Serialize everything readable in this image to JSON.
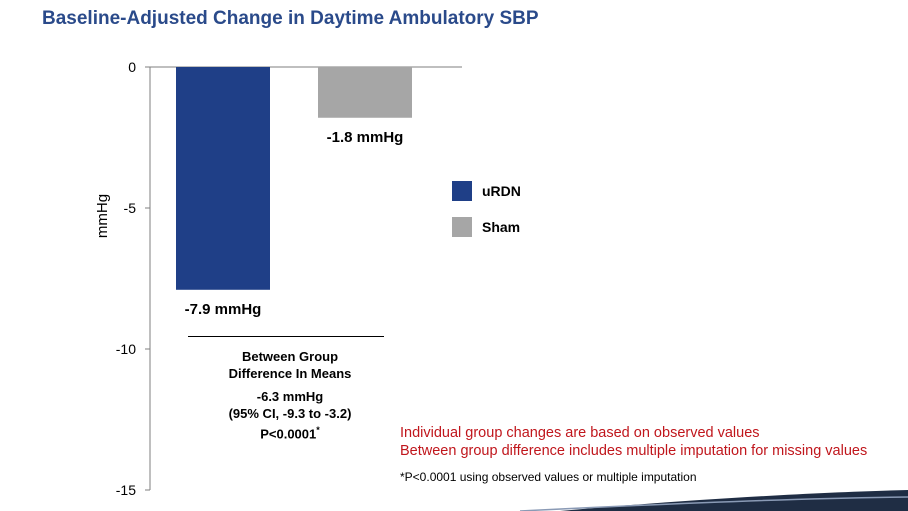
{
  "chart_data": {
    "type": "bar",
    "title": "Baseline-Adjusted Change in Daytime Ambulatory SBP",
    "ylabel": "mmHg",
    "xlabel": "",
    "ylim": [
      -15,
      0
    ],
    "yticks": [
      0,
      -5,
      -10,
      -15
    ],
    "grid": false,
    "legend_position": "right",
    "categories": [
      "uRDN",
      "Sham"
    ],
    "values": [
      -7.9,
      -1.8
    ],
    "data_labels": [
      "-7.9 mmHg",
      "-1.8 mmHg"
    ],
    "colors": [
      "#1f3f87",
      "#a6a6a6"
    ],
    "legend": [
      {
        "label": "uRDN",
        "color": "#1f3f87"
      },
      {
        "label": "Sham",
        "color": "#a6a6a6"
      }
    ]
  },
  "between_group": {
    "line1": "Between Group",
    "line2": "Difference In Means",
    "value": "-6.3 mmHg",
    "ci": "(95% CI,  -9.3 to -3.2)",
    "p_value": "P<0.0001",
    "p_marker": "*"
  },
  "notes": {
    "line1": "Individual group changes are based on observed values",
    "line2": "Between group difference includes multiple imputation for missing values",
    "footnote": "*P<0.0001 using observed values or multiple imputation"
  },
  "colors": {
    "title": "#2a4a8a",
    "note": "#c0161c",
    "corner": "#1f2d44"
  }
}
